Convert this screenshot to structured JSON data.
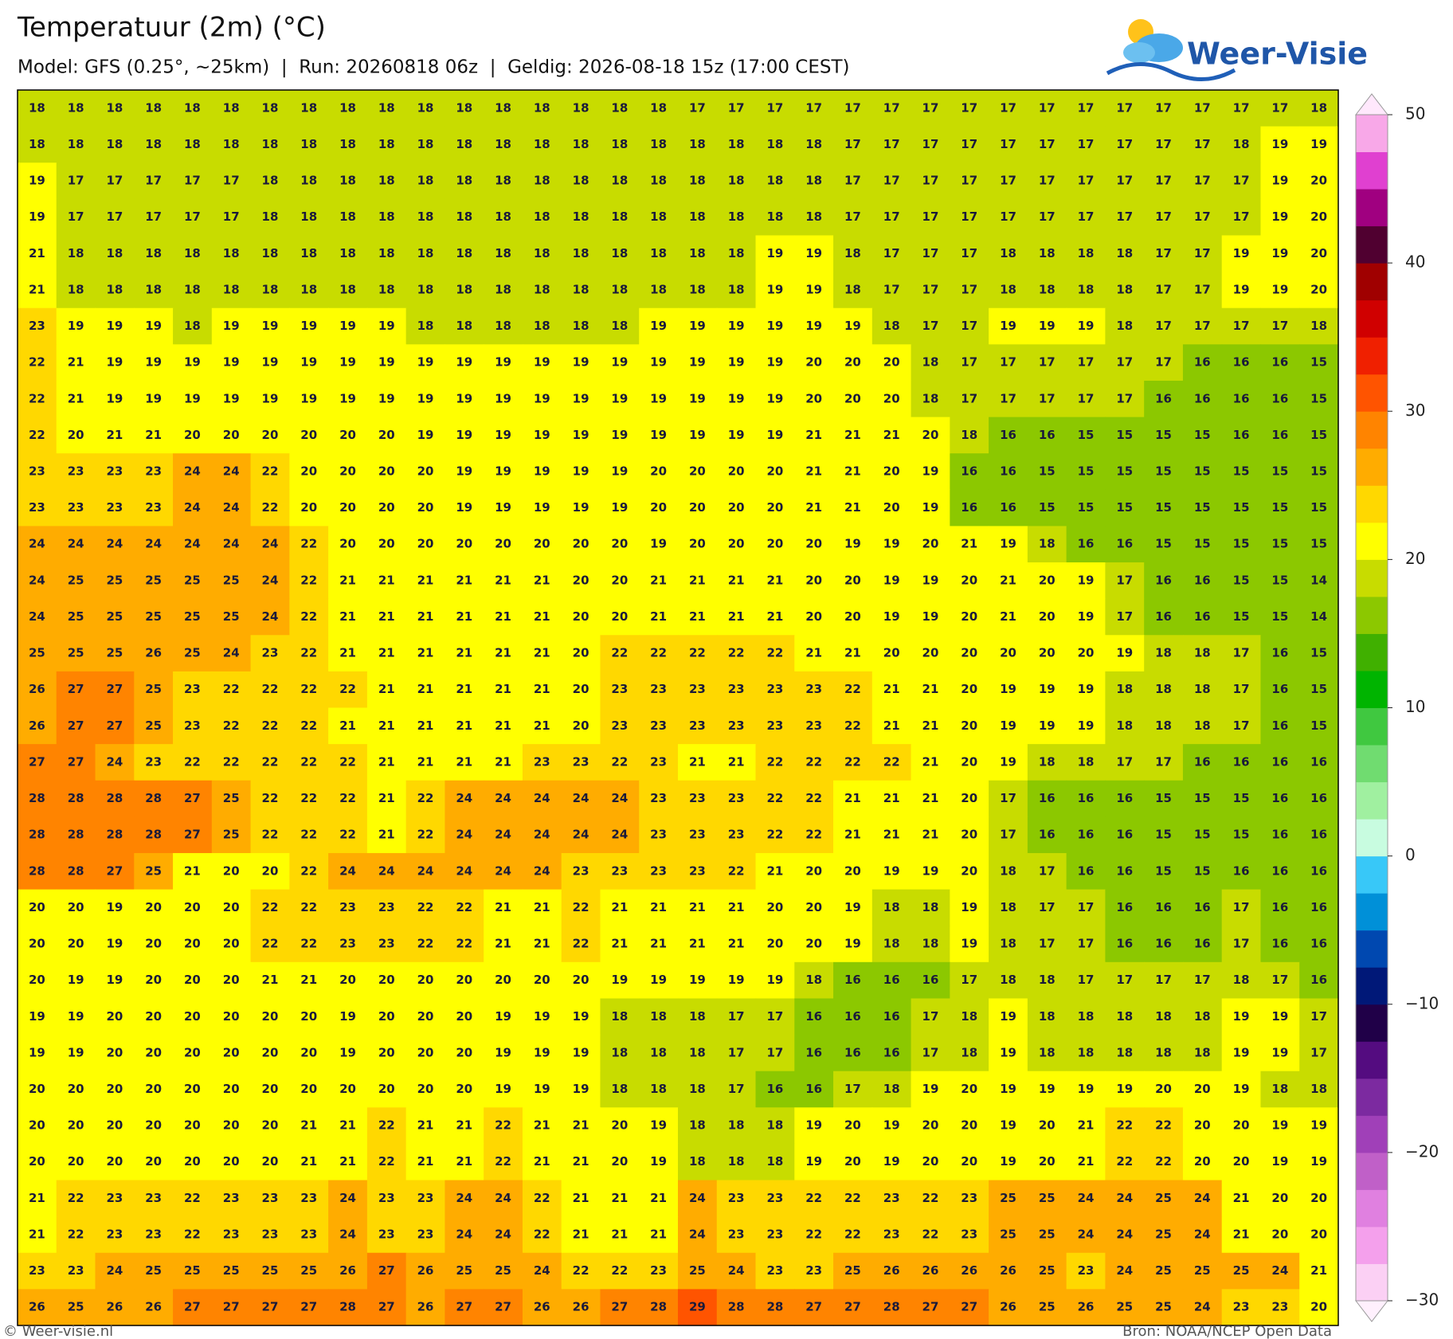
{
  "header": {
    "title": "Temperatuur (2m) (°C)",
    "subtitle": "Model: GFS (0.25°, ~25km)  |  Run: 20260818 06z  |  Geldig: 2026-08-18 15z (17:00 CEST)",
    "logo": "Weer-Visie"
  },
  "map": {
    "rows": [
      [
        18,
        18,
        18,
        18,
        18,
        18,
        18,
        18,
        18,
        18,
        18,
        18,
        18,
        18,
        18,
        18,
        18,
        17,
        17,
        17,
        17,
        17,
        17,
        17,
        17,
        17,
        17,
        17,
        17,
        17,
        17,
        17,
        17,
        18
      ],
      [
        18,
        18,
        18,
        18,
        18,
        18,
        18,
        18,
        18,
        18,
        18,
        18,
        18,
        18,
        18,
        18,
        18,
        18,
        18,
        18,
        18,
        17,
        17,
        17,
        17,
        17,
        17,
        17,
        17,
        17,
        17,
        18,
        19,
        19
      ],
      [
        19,
        17,
        17,
        17,
        17,
        17,
        18,
        18,
        18,
        18,
        18,
        18,
        18,
        18,
        18,
        18,
        18,
        18,
        18,
        18,
        18,
        17,
        17,
        17,
        17,
        17,
        17,
        17,
        17,
        17,
        17,
        17,
        19,
        20
      ],
      [
        19,
        17,
        17,
        17,
        17,
        17,
        18,
        18,
        18,
        18,
        18,
        18,
        18,
        18,
        18,
        18,
        18,
        18,
        18,
        18,
        18,
        17,
        17,
        17,
        17,
        17,
        17,
        17,
        17,
        17,
        17,
        17,
        19,
        20
      ],
      [
        21,
        18,
        18,
        18,
        18,
        18,
        18,
        18,
        18,
        18,
        18,
        18,
        18,
        18,
        18,
        18,
        18,
        18,
        18,
        19,
        19,
        18,
        17,
        17,
        17,
        18,
        18,
        18,
        18,
        17,
        17,
        19,
        19,
        20
      ],
      [
        21,
        18,
        18,
        18,
        18,
        18,
        18,
        18,
        18,
        18,
        18,
        18,
        18,
        18,
        18,
        18,
        18,
        18,
        18,
        19,
        19,
        18,
        17,
        17,
        17,
        18,
        18,
        18,
        18,
        17,
        17,
        19,
        19,
        20
      ],
      [
        23,
        19,
        19,
        19,
        18,
        19,
        19,
        19,
        19,
        19,
        18,
        18,
        18,
        18,
        18,
        18,
        19,
        19,
        19,
        19,
        19,
        19,
        18,
        17,
        17,
        19,
        19,
        19,
        18,
        17,
        17,
        17,
        17,
        18
      ],
      [
        22,
        21,
        19,
        19,
        19,
        19,
        19,
        19,
        19,
        19,
        19,
        19,
        19,
        19,
        19,
        19,
        19,
        19,
        19,
        19,
        20,
        20,
        20,
        18,
        17,
        17,
        17,
        17,
        17,
        17,
        16,
        16,
        16,
        15
      ],
      [
        22,
        21,
        19,
        19,
        19,
        19,
        19,
        19,
        19,
        19,
        19,
        19,
        19,
        19,
        19,
        19,
        19,
        19,
        19,
        19,
        20,
        20,
        20,
        18,
        17,
        17,
        17,
        17,
        17,
        16,
        16,
        16,
        16,
        15
      ],
      [
        22,
        20,
        21,
        21,
        20,
        20,
        20,
        20,
        20,
        20,
        19,
        19,
        19,
        19,
        19,
        19,
        19,
        19,
        19,
        19,
        21,
        21,
        21,
        20,
        18,
        16,
        16,
        15,
        15,
        15,
        15,
        16,
        16,
        15
      ],
      [
        23,
        23,
        23,
        23,
        24,
        24,
        22,
        20,
        20,
        20,
        20,
        19,
        19,
        19,
        19,
        19,
        20,
        20,
        20,
        20,
        21,
        21,
        20,
        19,
        16,
        16,
        15,
        15,
        15,
        15,
        15,
        15,
        15,
        15
      ],
      [
        23,
        23,
        23,
        23,
        24,
        24,
        22,
        20,
        20,
        20,
        20,
        19,
        19,
        19,
        19,
        19,
        20,
        20,
        20,
        20,
        21,
        21,
        20,
        19,
        16,
        16,
        15,
        15,
        15,
        15,
        15,
        15,
        15,
        15
      ],
      [
        24,
        24,
        24,
        24,
        24,
        24,
        24,
        22,
        20,
        20,
        20,
        20,
        20,
        20,
        20,
        20,
        19,
        20,
        20,
        20,
        20,
        19,
        19,
        20,
        21,
        19,
        18,
        16,
        16,
        15,
        15,
        15,
        15,
        15
      ],
      [
        24,
        25,
        25,
        25,
        25,
        25,
        24,
        22,
        21,
        21,
        21,
        21,
        21,
        21,
        20,
        20,
        21,
        21,
        21,
        21,
        20,
        20,
        19,
        19,
        20,
        21,
        20,
        19,
        17,
        16,
        16,
        15,
        15,
        14
      ],
      [
        24,
        25,
        25,
        25,
        25,
        25,
        24,
        22,
        21,
        21,
        21,
        21,
        21,
        21,
        20,
        20,
        21,
        21,
        21,
        21,
        20,
        20,
        19,
        19,
        20,
        21,
        20,
        19,
        17,
        16,
        16,
        15,
        15,
        14
      ],
      [
        25,
        25,
        25,
        26,
        25,
        24,
        23,
        22,
        21,
        21,
        21,
        21,
        21,
        21,
        20,
        22,
        22,
        22,
        22,
        22,
        21,
        21,
        20,
        20,
        20,
        20,
        20,
        20,
        19,
        18,
        18,
        17,
        16,
        15
      ],
      [
        26,
        27,
        27,
        25,
        23,
        22,
        22,
        22,
        22,
        21,
        21,
        21,
        21,
        21,
        20,
        23,
        23,
        23,
        23,
        23,
        23,
        22,
        21,
        21,
        20,
        19,
        19,
        19,
        18,
        18,
        18,
        17,
        16,
        15
      ],
      [
        26,
        27,
        27,
        25,
        23,
        22,
        22,
        22,
        21,
        21,
        21,
        21,
        21,
        21,
        20,
        23,
        23,
        23,
        23,
        23,
        23,
        22,
        21,
        21,
        20,
        19,
        19,
        19,
        18,
        18,
        18,
        17,
        16,
        15
      ],
      [
        27,
        27,
        24,
        23,
        22,
        22,
        22,
        22,
        22,
        21,
        21,
        21,
        21,
        23,
        23,
        22,
        23,
        21,
        21,
        22,
        22,
        22,
        22,
        21,
        20,
        19,
        18,
        18,
        17,
        17,
        16,
        16,
        16,
        16
      ],
      [
        28,
        28,
        28,
        28,
        27,
        25,
        22,
        22,
        22,
        21,
        22,
        24,
        24,
        24,
        24,
        24,
        23,
        23,
        23,
        22,
        22,
        21,
        21,
        21,
        20,
        17,
        16,
        16,
        16,
        15,
        15,
        15,
        16,
        16
      ],
      [
        28,
        28,
        28,
        28,
        27,
        25,
        22,
        22,
        22,
        21,
        22,
        24,
        24,
        24,
        24,
        24,
        23,
        23,
        23,
        22,
        22,
        21,
        21,
        21,
        20,
        17,
        16,
        16,
        16,
        15,
        15,
        15,
        16,
        16
      ],
      [
        28,
        28,
        27,
        25,
        21,
        20,
        20,
        22,
        24,
        24,
        24,
        24,
        24,
        24,
        23,
        23,
        23,
        23,
        22,
        21,
        20,
        20,
        19,
        19,
        20,
        18,
        17,
        16,
        16,
        15,
        15,
        16,
        16,
        16
      ],
      [
        20,
        20,
        19,
        20,
        20,
        20,
        22,
        22,
        23,
        23,
        22,
        22,
        21,
        21,
        22,
        21,
        21,
        21,
        21,
        20,
        20,
        19,
        18,
        18,
        19,
        18,
        17,
        17,
        16,
        16,
        16,
        17,
        16,
        16
      ],
      [
        20,
        20,
        19,
        20,
        20,
        20,
        22,
        22,
        23,
        23,
        22,
        22,
        21,
        21,
        22,
        21,
        21,
        21,
        21,
        20,
        20,
        19,
        18,
        18,
        19,
        18,
        17,
        17,
        16,
        16,
        16,
        17,
        16,
        16
      ],
      [
        20,
        19,
        19,
        20,
        20,
        20,
        21,
        21,
        20,
        20,
        20,
        20,
        20,
        20,
        20,
        19,
        19,
        19,
        19,
        19,
        18,
        16,
        16,
        16,
        17,
        18,
        18,
        17,
        17,
        17,
        17,
        18,
        17,
        16
      ],
      [
        19,
        19,
        20,
        20,
        20,
        20,
        20,
        20,
        19,
        20,
        20,
        20,
        19,
        19,
        19,
        18,
        18,
        18,
        17,
        17,
        16,
        16,
        16,
        17,
        18,
        19,
        18,
        18,
        18,
        18,
        18,
        19,
        19,
        17
      ],
      [
        19,
        19,
        20,
        20,
        20,
        20,
        20,
        20,
        19,
        20,
        20,
        20,
        19,
        19,
        19,
        18,
        18,
        18,
        17,
        17,
        16,
        16,
        16,
        17,
        18,
        19,
        18,
        18,
        18,
        18,
        18,
        19,
        19,
        17
      ],
      [
        20,
        20,
        20,
        20,
        20,
        20,
        20,
        20,
        20,
        20,
        20,
        20,
        19,
        19,
        19,
        18,
        18,
        18,
        17,
        16,
        16,
        17,
        18,
        19,
        20,
        19,
        19,
        19,
        19,
        20,
        20,
        19,
        18,
        18
      ],
      [
        20,
        20,
        20,
        20,
        20,
        20,
        20,
        21,
        21,
        22,
        21,
        21,
        22,
        21,
        21,
        20,
        19,
        18,
        18,
        18,
        19,
        20,
        19,
        20,
        20,
        19,
        20,
        21,
        22,
        22,
        20,
        20,
        19,
        19
      ],
      [
        20,
        20,
        20,
        20,
        20,
        20,
        20,
        21,
        21,
        22,
        21,
        21,
        22,
        21,
        21,
        20,
        19,
        18,
        18,
        18,
        19,
        20,
        19,
        20,
        20,
        19,
        20,
        21,
        22,
        22,
        20,
        20,
        19,
        19
      ],
      [
        21,
        22,
        23,
        23,
        22,
        23,
        23,
        23,
        24,
        23,
        23,
        24,
        24,
        22,
        21,
        21,
        21,
        24,
        23,
        23,
        22,
        22,
        23,
        22,
        23,
        25,
        25,
        24,
        24,
        25,
        24,
        21,
        20,
        20
      ],
      [
        21,
        22,
        23,
        23,
        22,
        23,
        23,
        23,
        24,
        23,
        23,
        24,
        24,
        22,
        21,
        21,
        21,
        24,
        23,
        23,
        22,
        22,
        23,
        22,
        23,
        25,
        25,
        24,
        24,
        25,
        24,
        21,
        20,
        20
      ],
      [
        23,
        23,
        24,
        25,
        25,
        25,
        25,
        25,
        26,
        27,
        26,
        25,
        25,
        24,
        22,
        22,
        23,
        25,
        24,
        23,
        23,
        25,
        26,
        26,
        26,
        26,
        25,
        23,
        24,
        25,
        25,
        25,
        24,
        21
      ],
      [
        26,
        25,
        26,
        26,
        27,
        27,
        27,
        27,
        28,
        27,
        26,
        27,
        27,
        26,
        26,
        27,
        28,
        29,
        28,
        28,
        27,
        27,
        28,
        27,
        27,
        26,
        25,
        26,
        25,
        25,
        24,
        23,
        23,
        20
      ]
    ]
  },
  "colorbar": {
    "lim": [
      -30,
      50
    ],
    "ticks": [
      50,
      40,
      30,
      20,
      10,
      0,
      {
        "value": -10,
        "label": "−10"
      },
      {
        "value": -20,
        "label": "−20"
      },
      {
        "value": -30,
        "label": "−30"
      }
    ],
    "colors": [
      "#fbd0f4",
      "#f4a0ec",
      "#e080e0",
      "#c060c8",
      "#a040b8",
      "#7c2aa0",
      "#540c80",
      "#200048",
      "#001878",
      "#0048b0",
      "#0090d8",
      "#38c8f8",
      "#c8fce0",
      "#a0f0a0",
      "#70dc70",
      "#40c840",
      "#00b400",
      "#40b000",
      "#8cc800",
      "#c8dc00",
      "#ffff00",
      "#ffd800",
      "#ffac00",
      "#ff8400",
      "#ff5400",
      "#f02000",
      "#d00000",
      "#a00000",
      "#500030",
      "#a00080",
      "#e040d0",
      "#f8a8e8"
    ]
  },
  "footer": {
    "credit": "© Weer-visie.nl",
    "source": "Bron: NOAA/NCEP Open Data"
  }
}
